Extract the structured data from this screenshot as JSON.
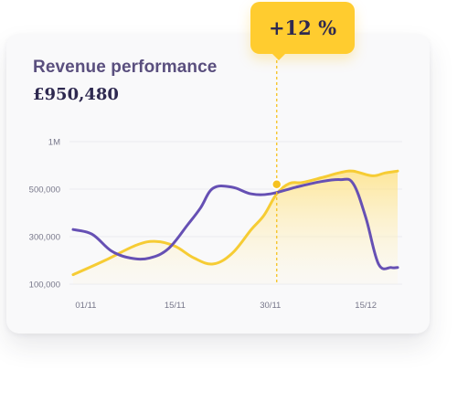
{
  "card": {
    "title": "Revenue performance",
    "value": "£950,480"
  },
  "badge": {
    "label": "+12 %"
  },
  "colors": {
    "yellow_series": "#f6cc34",
    "purple_series": "#6650b4",
    "marker": "#f6c21f",
    "grid": "#ececf0"
  },
  "chart_data": {
    "type": "line",
    "title": "Revenue performance",
    "y_ticks": [
      {
        "label": "1M",
        "value": 1000000
      },
      {
        "label": "500,000",
        "value": 500000
      },
      {
        "label": "300,000",
        "value": 300000
      },
      {
        "label": "100,000",
        "value": 100000
      }
    ],
    "x_ticks": [
      {
        "label": "01/11",
        "value": 1
      },
      {
        "label": "15/11",
        "value": 15
      },
      {
        "label": "30/11",
        "value": 30
      },
      {
        "label": "15/12",
        "value": 45
      }
    ],
    "xlim": [
      -1,
      50
    ],
    "grid": true,
    "legend": "none",
    "series": [
      {
        "color": "#f6cc34",
        "fill": true,
        "points": [
          [
            -1,
            140000
          ],
          [
            4,
            200000
          ],
          [
            9,
            265000
          ],
          [
            12,
            280000
          ],
          [
            15,
            260000
          ],
          [
            18,
            210000
          ],
          [
            21,
            185000
          ],
          [
            24,
            230000
          ],
          [
            27,
            330000
          ],
          [
            29,
            390000
          ],
          [
            31,
            480000
          ],
          [
            33,
            560000
          ],
          [
            35,
            570000
          ],
          [
            38,
            620000
          ],
          [
            41,
            675000
          ],
          [
            43,
            690000
          ],
          [
            46,
            640000
          ],
          [
            48,
            670000
          ],
          [
            50,
            690000
          ]
        ]
      },
      {
        "color": "#6650b4",
        "fill": false,
        "points": [
          [
            -1,
            330000
          ],
          [
            2,
            310000
          ],
          [
            5,
            240000
          ],
          [
            8,
            210000
          ],
          [
            11,
            210000
          ],
          [
            14,
            250000
          ],
          [
            17,
            350000
          ],
          [
            19,
            420000
          ],
          [
            21,
            510000
          ],
          [
            24,
            520000
          ],
          [
            27,
            480000
          ],
          [
            30,
            480000
          ],
          [
            34,
            520000
          ],
          [
            38,
            580000
          ],
          [
            41,
            600000
          ],
          [
            43,
            560000
          ],
          [
            45,
            380000
          ],
          [
            47,
            185000
          ],
          [
            49,
            170000
          ],
          [
            50,
            170000
          ]
        ]
      }
    ],
    "annotations": [
      {
        "label": "+12 %",
        "x": 31,
        "y": 550000
      }
    ]
  }
}
